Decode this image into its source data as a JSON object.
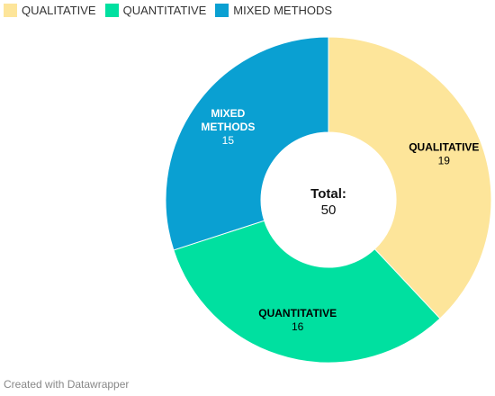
{
  "chart_data": {
    "type": "pie",
    "variant": "donut",
    "categories": [
      "QUALITATIVE",
      "QUANTITATIVE",
      "MIXED METHODS"
    ],
    "values": [
      19,
      16,
      15
    ],
    "slice_labels": [
      {
        "lines": [
          "QUALITATIVE"
        ],
        "value": "19"
      },
      {
        "lines": [
          "QUANTITATIVE"
        ],
        "value": "16"
      },
      {
        "lines": [
          "MIXED",
          "METHODS"
        ],
        "value": "15"
      }
    ],
    "colors": [
      "#fde59a",
      "#00e0a0",
      "#0aa0d2"
    ],
    "label_colors": [
      "#000000",
      "#000000",
      "#ffffff"
    ],
    "center_label": "Total:",
    "center_value": "50",
    "legend_placement": "top-left"
  },
  "legend": {
    "items": [
      {
        "label": "QUALITATIVE",
        "color": "#fde59a"
      },
      {
        "label": "QUANTITATIVE",
        "color": "#00e0a0"
      },
      {
        "label": "MIXED METHODS",
        "color": "#0aa0d2"
      }
    ]
  },
  "footer": {
    "text": "Created with Datawrapper"
  }
}
